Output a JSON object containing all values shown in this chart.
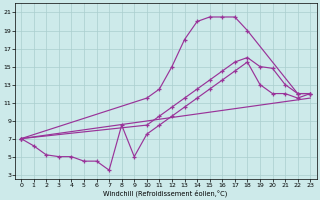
{
  "bg_color": "#cdeaea",
  "grid_color": "#aacece",
  "line_color": "#993399",
  "xlabel": "Windchill (Refroidissement éolien,°C)",
  "xlim": [
    -0.5,
    23.5
  ],
  "ylim": [
    2.5,
    22
  ],
  "xticks": [
    0,
    1,
    2,
    3,
    4,
    5,
    6,
    7,
    8,
    9,
    10,
    11,
    12,
    13,
    14,
    15,
    16,
    17,
    18,
    19,
    20,
    21,
    22,
    23
  ],
  "yticks": [
    3,
    5,
    7,
    9,
    11,
    13,
    15,
    17,
    19,
    21
  ],
  "curves": [
    {
      "x": [
        0,
        10,
        11,
        12,
        13,
        14,
        15,
        16,
        17,
        18,
        22,
        23
      ],
      "y": [
        7,
        11.5,
        12.5,
        15,
        18,
        20,
        20.5,
        20.5,
        20.5,
        19,
        12,
        12
      ]
    },
    {
      "x": [
        0,
        10,
        11,
        12,
        13,
        14,
        15,
        16,
        17,
        18,
        19,
        20,
        21,
        22,
        23
      ],
      "y": [
        7,
        8.5,
        9.5,
        10.5,
        11.5,
        12.5,
        13.5,
        14.5,
        15.5,
        16,
        15,
        14.8,
        13,
        12,
        12
      ]
    },
    {
      "x": [
        0,
        1,
        2,
        3,
        4,
        5,
        6,
        7,
        8,
        9,
        10,
        11,
        12,
        13,
        14,
        15,
        16,
        17,
        18,
        19,
        20,
        21,
        22,
        23
      ],
      "y": [
        7,
        6.2,
        5.2,
        5,
        5,
        4.5,
        4.5,
        3.5,
        8.5,
        5,
        7.5,
        8.5,
        9.5,
        10.5,
        11.5,
        12.5,
        13.5,
        14.5,
        15.5,
        13,
        12,
        12,
        11.5,
        12
      ]
    },
    {
      "x": [
        0,
        23
      ],
      "y": [
        7,
        11.5
      ],
      "no_marker": true
    }
  ]
}
